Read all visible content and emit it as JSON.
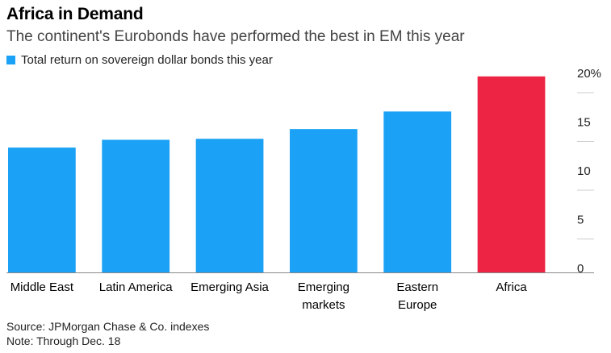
{
  "title": "Africa in Demand",
  "subtitle": "The continent's Eurobonds have performed the best in EM this year",
  "legend": {
    "label": "Total return on sovereign dollar bonds this year",
    "color": "#1ba1f5"
  },
  "source": "Source: JPMorgan Chase & Co. indexes",
  "note": "Note: Through Dec. 18",
  "colors": {
    "bar": "#1ba1f5",
    "highlight": "#ee2444",
    "axis": "#888888"
  },
  "chart_data": {
    "type": "bar",
    "categories": [
      [
        "Middle East"
      ],
      [
        "Latin America"
      ],
      [
        "Emerging Asia"
      ],
      [
        "Emerging",
        "markets"
      ],
      [
        "Eastern",
        "Europe"
      ],
      [
        "Africa"
      ]
    ],
    "series": [
      {
        "name": "Total return on sovereign dollar bonds this year",
        "values": [
          12.8,
          13.6,
          13.7,
          14.7,
          16.5,
          20.1
        ]
      }
    ],
    "highlight_index": 5,
    "yticks": [
      {
        "value": 20,
        "label": "20%"
      },
      {
        "value": 15,
        "label": "15"
      },
      {
        "value": 10,
        "label": "10"
      },
      {
        "value": 5,
        "label": "5"
      },
      {
        "value": 0,
        "label": "0"
      }
    ],
    "ylim": [
      0,
      20
    ],
    "axis_side": "right",
    "title": "Africa in Demand",
    "xlabel": "",
    "ylabel": ""
  }
}
